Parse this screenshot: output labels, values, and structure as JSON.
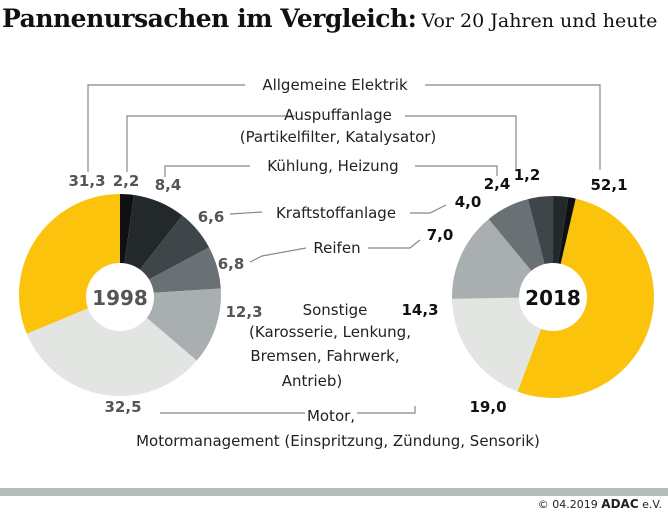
{
  "title": "Pannenursachen im Vergleich:",
  "subtitle": "Vor 20 Jahren und heute",
  "footer": {
    "copyright": "© 04.2019",
    "brand": "ADAC",
    "suffix": "e.V."
  },
  "chart_data": [
    {
      "type": "pie",
      "title": "1998",
      "donut": true,
      "categories": [
        "Auspuffanlage",
        "Kühlung, Heizung",
        "Kraftstoffanlage",
        "Reifen",
        "Sonstige",
        "Motor, Motormanagement",
        "Allgemeine Elektrik"
      ],
      "values": [
        2.2,
        8.4,
        6.6,
        6.8,
        12.3,
        32.5,
        31.3
      ],
      "labels": [
        "2,2",
        "8,4",
        "6,6",
        "6,8",
        "12,3",
        "32,5",
        "31,3"
      ],
      "colors": [
        "#0e1012",
        "#23282b",
        "#3f4649",
        "#6a7174",
        "#a9afb0",
        "#e3e5e2",
        "#fcc30c"
      ]
    },
    {
      "type": "pie",
      "title": "2018",
      "donut": true,
      "categories": [
        "Allgemeine Elektrik",
        "Motor, Motormanagement",
        "Sonstige",
        "Reifen",
        "Kraftstoffanlage",
        "Kühlung, Heizung",
        "Auspuffanlage"
      ],
      "values": [
        52.1,
        19.0,
        14.3,
        7.0,
        4.0,
        2.4,
        1.2
      ],
      "labels": [
        "52,1",
        "19,0",
        "14,3",
        "7,0",
        "4,0",
        "2,4",
        "1,2"
      ],
      "colors": [
        "#fcc30c",
        "#e3e5e2",
        "#a9afb0",
        "#6a7174",
        "#3f4649",
        "#23282b",
        "#0e1012"
      ]
    }
  ],
  "categories": {
    "elektrik": "Allgemeine Elektrik",
    "auspuff": "Auspuffanlage",
    "auspuff_detail": "(Partikelfilter, Katalysator)",
    "kuehlung": "Kühlung, Heizung",
    "kraftstoff": "Kraftstoffanlage",
    "reifen": "Reifen",
    "sonstige": "Sonstige",
    "sonstige_detail1": "(Karosserie, Lenkung,",
    "sonstige_detail2": "Bremsen, Fahrwerk,",
    "sonstige_detail3": "Antrieb)",
    "motor": "Motor,",
    "motor_detail": "Motormanagement (Einspritzung, Zündung, Sensorik)"
  }
}
